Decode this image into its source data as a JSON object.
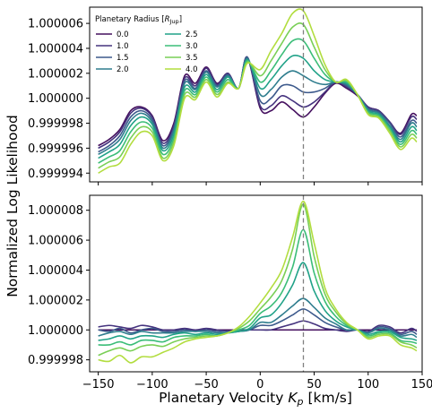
{
  "chart_data": {
    "type": "line",
    "xlabel_main": "Planetary Velocity ",
    "xlabel_sym": "K",
    "xlabel_sub": "p",
    "xlabel_unit": " [km/s]",
    "ylabel": "Normalized Log Likelihood",
    "legend": {
      "title_main": "Planetary Radius [",
      "title_sym": "R",
      "title_sub": "Jup",
      "title_close": "]",
      "placement": "top-left of top panel",
      "entries": [
        "0.0",
        "1.0",
        "1.5",
        "2.0",
        "2.5",
        "3.0",
        "3.5",
        "4.0"
      ]
    },
    "xlim": [
      -158,
      150
    ],
    "xticks": [
      -150,
      -100,
      -50,
      0,
      50,
      100,
      150
    ],
    "xtick_labels": [
      "−150",
      "−100",
      "−50",
      "0",
      "50",
      "100",
      "150"
    ],
    "vline": {
      "x": 40,
      "style": "dashed",
      "color": "#808080"
    },
    "colors": [
      "#45105f",
      "#45337e",
      "#3d5a8c",
      "#2f7d8e",
      "#21a288",
      "#3bbd78",
      "#79cf56",
      "#b2dd3f"
    ],
    "panels": [
      {
        "name": "top",
        "ylim": [
          0.9999933,
          1.0000073
        ],
        "yticks": [
          0.999994,
          0.999996,
          0.999998,
          1.0,
          1.000002,
          1.000004,
          1.000006
        ],
        "ytick_labels": [
          "0.999994",
          "0.999996",
          "0.999998",
          "1.000000",
          "1.000002",
          "1.000004",
          "1.000006"
        ],
        "x": [
          -150,
          -140,
          -130,
          -120,
          -110,
          -100,
          -90,
          -80,
          -70,
          -60,
          -50,
          -40,
          -30,
          -20,
          -12,
          0,
          10,
          20,
          30,
          40,
          50,
          60,
          70,
          80,
          90,
          100,
          110,
          120,
          130,
          140,
          145
        ],
        "series": [
          {
            "name": "0.0",
            "values": [
              0.9999962,
              0.9999967,
              0.9999975,
              0.999999,
              0.9999993,
              0.9999986,
              0.9999966,
              0.999998,
              1.0000018,
              1.0000012,
              1.0000025,
              1.0000012,
              1.000002,
              1.0000008,
              1.0000033,
              0.9999992,
              0.999999,
              0.9999997,
              0.9999991,
              0.9999985,
              0.9999993,
              1.0000004,
              1.0000012,
              1.0000008,
              1.0000002,
              0.9999993,
              0.999999,
              0.9999981,
              0.9999972,
              0.9999987,
              0.9999986
            ]
          },
          {
            "name": "1.0",
            "values": [
              0.999996,
              0.9999965,
              0.9999973,
              0.9999988,
              0.9999992,
              0.9999985,
              0.9999964,
              0.9999978,
              1.0000016,
              1.000001,
              1.0000024,
              1.0000011,
              1.000002,
              1.0000008,
              1.0000033,
              0.9999994,
              0.9999994,
              1.0000002,
              0.9999998,
              0.9999993,
              0.9999997,
              1.0000005,
              1.0000013,
              1.0000009,
              1.0000003,
              0.9999993,
              0.999999,
              0.9999981,
              0.9999971,
              0.9999985,
              0.9999983
            ]
          },
          {
            "name": "1.5",
            "values": [
              0.9999957,
              0.9999962,
              0.999997,
              0.9999985,
              0.999999,
              0.9999983,
              0.9999962,
              0.9999976,
              1.0000014,
              1.0000008,
              1.0000022,
              1.000001,
              1.0000019,
              1.0000008,
              1.0000033,
              0.9999998,
              1.0,
              1.000001,
              1.000001,
              1.0000005,
              1.0000005,
              1.0000008,
              1.0000013,
              1.000001,
              1.0000003,
              0.9999992,
              0.9999989,
              0.999998,
              0.9999969,
              0.9999982,
              0.999998
            ]
          },
          {
            "name": "2.0",
            "values": [
              0.9999955,
              0.999996,
              0.9999967,
              0.9999982,
              0.9999988,
              0.9999981,
              0.999996,
              0.9999974,
              1.0000012,
              1.0000007,
              1.0000021,
              1.0000009,
              1.0000018,
              1.0000008,
              1.0000032,
              1.0000003,
              1.0000007,
              1.0000017,
              1.0000022,
              1.0000018,
              1.0000013,
              1.0000011,
              1.0000013,
              1.0000011,
              1.0000003,
              0.9999991,
              0.9999988,
              0.9999978,
              0.9999967,
              0.999998,
              0.9999977
            ]
          },
          {
            "name": "2.5",
            "values": [
              0.9999952,
              0.9999957,
              0.9999963,
              0.9999978,
              0.9999985,
              0.9999979,
              0.9999958,
              0.9999971,
              1.0000009,
              1.0000005,
              1.0000019,
              1.0000007,
              1.0000017,
              1.0000008,
              1.0000031,
              1.0000008,
              1.0000015,
              1.0000026,
              1.0000034,
              1.0000032,
              1.0000022,
              1.0000015,
              1.0000013,
              1.0000012,
              1.0000003,
              0.999999,
              0.9999987,
              0.9999977,
              0.9999965,
              0.9999977,
              0.9999974
            ]
          },
          {
            "name": "3.0",
            "values": [
              0.9999948,
              0.9999953,
              0.9999958,
              0.9999973,
              0.9999981,
              0.9999976,
              0.9999955,
              0.9999968,
              1.0000006,
              1.0000003,
              1.0000017,
              1.0000005,
              1.0000015,
              1.0000008,
              1.000003,
              1.0000013,
              1.0000022,
              1.0000035,
              1.0000046,
              1.0000046,
              1.0000032,
              1.0000019,
              1.0000013,
              1.0000013,
              1.0000003,
              0.9999989,
              0.9999986,
              0.9999975,
              0.9999963,
              0.9999974,
              0.9999971
            ]
          },
          {
            "name": "3.5",
            "values": [
              0.9999944,
              0.9999949,
              0.9999953,
              0.9999968,
              0.9999977,
              0.9999973,
              0.9999952,
              0.9999965,
              1.0000003,
              1.0000001,
              1.0000015,
              1.0000003,
              1.0000013,
              1.0000008,
              1.0000029,
              1.0000018,
              1.000003,
              1.0000044,
              1.0000057,
              1.0000059,
              1.0000041,
              1.0000023,
              1.0000013,
              1.0000014,
              1.0000003,
              0.9999988,
              0.9999985,
              0.9999974,
              0.9999961,
              0.9999971,
              0.9999968
            ]
          },
          {
            "name": "4.0",
            "values": [
              0.999994,
              0.9999945,
              0.9999948,
              0.9999963,
              0.9999973,
              0.999997,
              0.999995,
              0.9999962,
              1.0,
              0.9999999,
              1.0000013,
              1.0000001,
              1.0000012,
              1.0000008,
              1.0000028,
              1.0000023,
              1.0000038,
              1.0000052,
              1.0000068,
              1.000007,
              1.000005,
              1.0000027,
              1.0000013,
              1.0000015,
              1.0000003,
              0.9999987,
              0.9999984,
              0.9999972,
              0.9999959,
              0.9999968,
              0.9999965
            ]
          }
        ]
      },
      {
        "name": "bottom",
        "ylim": [
          0.9999972,
          1.000009
        ],
        "yticks": [
          0.999998,
          1.0,
          1.000002,
          1.000004,
          1.000006,
          1.000008
        ],
        "ytick_labels": [
          "0.999998",
          "1.000000",
          "1.000002",
          "1.000004",
          "1.000006",
          "1.000008"
        ],
        "x": [
          -150,
          -140,
          -130,
          -120,
          -110,
          -100,
          -90,
          -80,
          -70,
          -60,
          -50,
          -40,
          -30,
          -20,
          -10,
          0,
          10,
          20,
          30,
          40,
          50,
          60,
          70,
          80,
          90,
          100,
          110,
          120,
          130,
          140,
          145
        ],
        "series": [
          {
            "name": "0.0",
            "values": [
              1.0,
              1.0,
              1.0,
              1.0,
              1.0,
              1.0,
              1.0,
              1.0,
              1.0,
              1.0,
              1.0,
              1.0,
              1.0,
              1.0,
              1.0,
              1.0,
              1.0,
              1.0,
              1.0,
              1.0,
              1.0,
              1.0,
              1.0,
              1.0,
              1.0,
              1.0,
              1.0,
              1.0,
              1.0,
              1.0,
              1.0
            ]
          },
          {
            "name": "1.0",
            "values": [
              1.0000002,
              1.0000003,
              1.0000002,
              1.0000001,
              1.0000003,
              1.0000002,
              1.0,
              1.0,
              1.0000001,
              1.0,
              1.0000001,
              1.0,
              0.9999999,
              1.0,
              1.0,
              1.0,
              1.0,
              1.0000002,
              1.0000004,
              1.0000006,
              1.0000004,
              1.0000001,
              1.0,
              0.9999999,
              1.0,
              0.9999999,
              1.0000003,
              1.0000002,
              0.9999998,
              1.0000001,
              0.9999999
            ]
          },
          {
            "name": "1.5",
            "values": [
              1.0,
              0.9999999,
              1.0000001,
              0.9999998,
              1.0,
              1.0000001,
              0.9999999,
              0.9999999,
              1.0,
              0.9999999,
              1.0,
              0.9999999,
              0.9999999,
              0.9999999,
              1.0,
              1.0000003,
              1.0000003,
              1.0000006,
              1.000001,
              1.0000014,
              1.000001,
              1.0000005,
              1.0000002,
              1.0,
              1.0,
              0.9999998,
              1.0000002,
              1.0000001,
              0.9999997,
              0.9999999,
              0.9999997
            ]
          },
          {
            "name": "2.0",
            "values": [
              0.9999996,
              0.9999998,
              0.9999999,
              0.9999997,
              0.9999999,
              0.9999998,
              0.9999998,
              0.9999998,
              0.9999999,
              0.9999999,
              0.9999999,
              0.9999998,
              0.9999998,
              0.9999999,
              1.0,
              1.0000005,
              1.0000005,
              1.000001,
              1.0000016,
              1.0000021,
              1.0000015,
              1.0000008,
              1.0000004,
              1.0,
              1.0,
              0.9999998,
              1.0000001,
              1.0,
              0.9999996,
              0.9999997,
              0.9999995
            ]
          },
          {
            "name": "2.5",
            "values": [
              0.9999993,
              0.9999994,
              0.9999996,
              0.9999994,
              0.9999996,
              0.9999996,
              0.9999995,
              0.9999997,
              0.9999998,
              0.9999997,
              0.9999998,
              0.9999997,
              0.9999998,
              0.9999999,
              1.0000001,
              1.0000008,
              1.000001,
              1.0000018,
              1.000003,
              1.0000045,
              1.0000026,
              1.0000013,
              1.0000006,
              1.0000002,
              1.0,
              0.9999997,
              0.9999999,
              0.9999999,
              0.9999995,
              0.9999994,
              0.9999993
            ]
          },
          {
            "name": "3.0",
            "values": [
              0.999999,
              0.999999,
              0.9999992,
              0.999999,
              0.9999993,
              0.9999993,
              0.9999992,
              0.9999995,
              0.9999996,
              0.9999996,
              0.9999997,
              0.9999996,
              0.9999998,
              1.0,
              1.0000003,
              1.0000011,
              1.0000016,
              1.0000025,
              1.0000042,
              1.0000067,
              1.0000038,
              1.0000019,
              1.0000009,
              1.0000003,
              1.0,
              0.9999996,
              0.9999998,
              0.9999998,
              0.9999993,
              0.9999992,
              0.9999991
            ]
          },
          {
            "name": "3.5",
            "values": [
              0.9999983,
              0.9999986,
              0.9999988,
              0.9999986,
              0.9999989,
              0.999999,
              0.9999989,
              0.9999992,
              0.9999994,
              0.9999995,
              0.9999996,
              0.9999996,
              0.9999998,
              1.0000001,
              1.0000006,
              1.0000014,
              1.0000022,
              1.0000033,
              1.0000054,
              1.0000084,
              1.0000049,
              1.0000024,
              1.0000012,
              1.0000004,
              1.0,
              0.9999995,
              0.9999997,
              0.9999997,
              0.9999992,
              0.999999,
              0.9999988
            ]
          },
          {
            "name": "4.0",
            "values": [
              0.999998,
              0.9999979,
              0.9999983,
              0.9999978,
              0.9999982,
              0.9999982,
              0.9999985,
              0.9999988,
              0.9999992,
              0.9999994,
              0.9999995,
              0.9999996,
              0.9999998,
              1.0000002,
              1.0000009,
              1.0000018,
              1.0000028,
              1.000004,
              1.0000062,
              1.0000086,
              1.0000058,
              1.0000028,
              1.0000014,
              1.0000005,
              1.0,
              0.9999994,
              0.9999996,
              0.9999996,
              0.999999,
              0.9999988,
              0.9999986
            ]
          }
        ]
      }
    ]
  }
}
